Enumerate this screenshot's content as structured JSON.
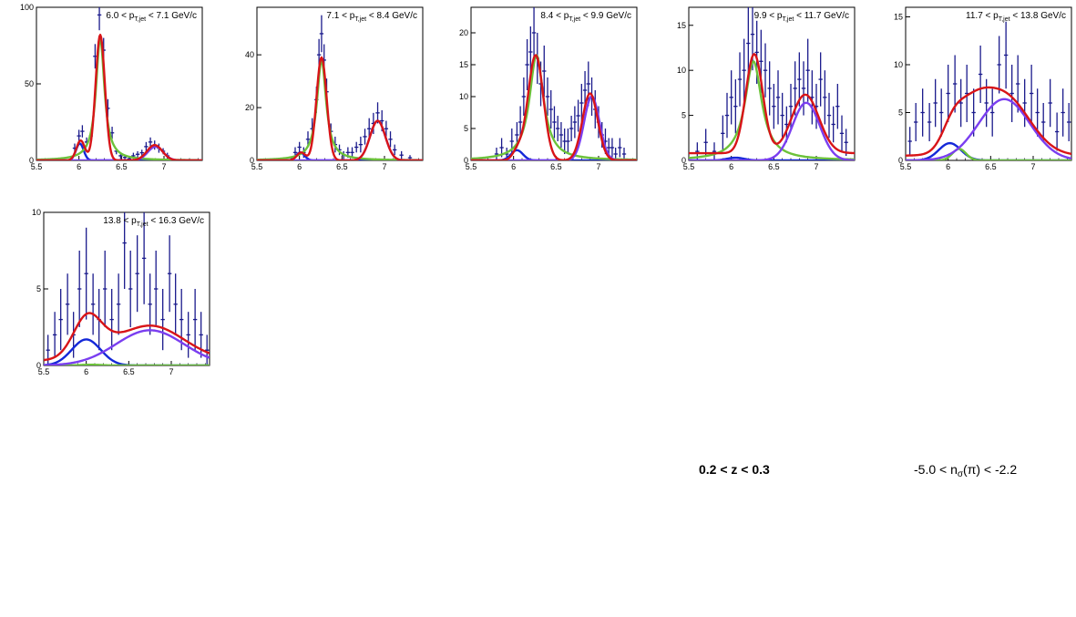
{
  "colors": {
    "data_points": "#1a1a8c",
    "total_fit": "#d81418",
    "kaon_fit": "#1428d8",
    "pion_fit": "#7a3ef0",
    "proton_fit": "#6cc23a"
  },
  "footer": {
    "z_range": "0.2 < z < 0.3",
    "nsigma_prefix": "-5.0 < n",
    "nsigma_sub": "σ",
    "nsigma_suffix": "(π) < -2.2"
  },
  "chart_data": [
    {
      "type": "scatter",
      "title_prefix": "6.0 < p",
      "title_sub": "T,jet",
      "title_suffix": " < 7.1 GeV/c",
      "xlim": [
        5.5,
        7.45
      ],
      "ylim": [
        0,
        100
      ],
      "x_ticks": [
        "5.5",
        "6",
        "6.5",
        "7"
      ],
      "y_ticks": [
        "0",
        "50",
        "100"
      ],
      "points": {
        "x": [
          5.95,
          6.0,
          6.04,
          6.09,
          6.14,
          6.19,
          6.24,
          6.29,
          6.34,
          6.39,
          6.44,
          6.49,
          6.54,
          6.59,
          6.64,
          6.69,
          6.74,
          6.79,
          6.84,
          6.89,
          6.94,
          6.99,
          7.04
        ],
        "y": [
          8,
          16,
          19,
          12,
          16,
          68,
          95,
          72,
          34,
          18,
          6,
          3,
          2,
          1,
          3,
          4,
          5,
          9,
          12,
          10,
          8,
          6,
          3
        ],
        "err": [
          3,
          4,
          4,
          3,
          4,
          8,
          10,
          8,
          6,
          4,
          2,
          2,
          1.5,
          1,
          2,
          2,
          2,
          3,
          3,
          3,
          3,
          2,
          2
        ]
      },
      "curves": [
        {
          "component": "total",
          "type": "multi",
          "peaks": [
            [
              6.02,
              13,
              0.05
            ],
            [
              6.25,
              82,
              0.055
            ],
            [
              6.89,
              10,
              0.09
            ]
          ]
        },
        {
          "component": "kaon",
          "type": "gauss",
          "mean": 6.01,
          "sigma": 0.045,
          "amp": 11
        },
        {
          "component": "proton",
          "type": "lorentz",
          "mean": 6.25,
          "gamma": 0.06,
          "amp": 80
        },
        {
          "component": "pion",
          "type": "gauss",
          "mean": 6.9,
          "sigma": 0.09,
          "amp": 9
        }
      ]
    },
    {
      "type": "scatter",
      "title_prefix": "7.1 < p",
      "title_sub": "T,jet",
      "title_suffix": " < 8.4 GeV/c",
      "xlim": [
        5.5,
        7.45
      ],
      "ylim": [
        0,
        58
      ],
      "x_ticks": [
        "5.5",
        "6",
        "6.5",
        "7"
      ],
      "y_ticks": [
        "0",
        "20",
        "40"
      ],
      "points": {
        "x": [
          5.95,
          6.0,
          6.05,
          6.1,
          6.15,
          6.2,
          6.23,
          6.26,
          6.29,
          6.32,
          6.37,
          6.42,
          6.47,
          6.52,
          6.57,
          6.62,
          6.67,
          6.72,
          6.77,
          6.82,
          6.87,
          6.92,
          6.97,
          7.02,
          7.07,
          7.12,
          7.2,
          7.3
        ],
        "y": [
          3,
          5,
          3,
          8,
          12,
          23,
          40,
          48,
          38,
          26,
          11,
          6,
          4,
          2,
          3,
          3,
          5,
          6,
          9,
          12,
          14,
          18,
          15,
          12,
          8,
          4,
          2,
          1
        ],
        "err": [
          2,
          2,
          2,
          3,
          4,
          5,
          6,
          7,
          6,
          5,
          3,
          3,
          2,
          1.5,
          2,
          2,
          2,
          3,
          3,
          4,
          4,
          4,
          4,
          3,
          3,
          2,
          1.5,
          1
        ]
      },
      "curves": [
        {
          "component": "total",
          "type": "multi",
          "peaks": [
            [
              6.02,
              3,
              0.05
            ],
            [
              6.26,
              39,
              0.06
            ],
            [
              6.92,
              15,
              0.09
            ]
          ]
        },
        {
          "component": "kaon",
          "type": "gauss",
          "mean": 6.01,
          "sigma": 0.05,
          "amp": 3
        },
        {
          "component": "proton",
          "type": "lorentz",
          "mean": 6.26,
          "gamma": 0.065,
          "amp": 38
        },
        {
          "component": "pion",
          "type": "gauss",
          "mean": 6.92,
          "sigma": 0.09,
          "amp": 15
        }
      ]
    },
    {
      "type": "scatter",
      "title_prefix": "8.4 < p",
      "title_sub": "T,jet",
      "title_suffix": " < 9.9 GeV/c",
      "xlim": [
        5.5,
        7.45
      ],
      "ylim": [
        0,
        24
      ],
      "x_ticks": [
        "5.5",
        "6",
        "6.5",
        "7"
      ],
      "y_ticks": [
        "0",
        "5",
        "10",
        "15",
        "20"
      ],
      "points": {
        "x": [
          5.8,
          5.86,
          5.92,
          5.98,
          6.04,
          6.08,
          6.12,
          6.16,
          6.2,
          6.24,
          6.28,
          6.32,
          6.36,
          6.4,
          6.44,
          6.48,
          6.52,
          6.56,
          6.6,
          6.64,
          6.68,
          6.72,
          6.76,
          6.8,
          6.84,
          6.88,
          6.92,
          6.96,
          7.0,
          7.04,
          7.08,
          7.12,
          7.16,
          7.2,
          7.25,
          7.3
        ],
        "y": [
          1,
          2,
          1,
          3,
          4,
          6,
          10,
          15,
          17,
          20,
          16,
          12,
          14,
          10,
          8,
          6,
          5,
          4,
          3,
          3,
          5,
          6,
          7,
          9,
          11,
          12,
          10,
          8,
          6,
          4,
          3,
          2,
          2,
          1,
          2,
          1
        ],
        "err": [
          1,
          1.5,
          1,
          2,
          2,
          2.5,
          3,
          4,
          4,
          4.5,
          4,
          3.5,
          4,
          3,
          3,
          2.5,
          2,
          2,
          2,
          2,
          2,
          2.5,
          2.5,
          3,
          3,
          3.5,
          3,
          3,
          2.5,
          2,
          2,
          1.5,
          1.5,
          1,
          1.5,
          1
        ]
      },
      "curves": [
        {
          "component": "total",
          "type": "multi",
          "peaks": [
            [
              6.05,
              1.5,
              0.06
            ],
            [
              6.26,
              16.5,
              0.09
            ],
            [
              6.9,
              10.5,
              0.09
            ]
          ]
        },
        {
          "component": "kaon",
          "type": "gauss",
          "mean": 6.04,
          "sigma": 0.07,
          "amp": 1.6
        },
        {
          "component": "proton",
          "type": "lorentz",
          "mean": 6.27,
          "gamma": 0.1,
          "amp": 16.5
        },
        {
          "component": "pion",
          "type": "gauss",
          "mean": 6.92,
          "sigma": 0.09,
          "amp": 10
        }
      ]
    },
    {
      "type": "scatter",
      "title_prefix": "9.9 < p",
      "title_sub": "T,jet",
      "title_suffix": " < 11.7 GeV/c",
      "xlim": [
        5.5,
        7.45
      ],
      "ylim": [
        0,
        17
      ],
      "x_ticks": [
        "5.5",
        "6",
        "6.5",
        "7"
      ],
      "y_ticks": [
        "0",
        "5",
        "10",
        "15"
      ],
      "points": {
        "x": [
          5.6,
          5.7,
          5.8,
          5.9,
          5.95,
          6.0,
          6.05,
          6.1,
          6.15,
          6.2,
          6.25,
          6.3,
          6.35,
          6.4,
          6.45,
          6.5,
          6.55,
          6.6,
          6.65,
          6.7,
          6.75,
          6.8,
          6.85,
          6.9,
          6.95,
          7.0,
          7.05,
          7.1,
          7.15,
          7.2,
          7.25,
          7.3,
          7.35
        ],
        "y": [
          1,
          2,
          1,
          3,
          5,
          7,
          6,
          9,
          10,
          13,
          14,
          12,
          11,
          10,
          8,
          6,
          7,
          5,
          4,
          6,
          8,
          9,
          8,
          10,
          7,
          6,
          9,
          7,
          5,
          4,
          6,
          3,
          2
        ],
        "err": [
          1,
          1.5,
          1,
          2,
          2.5,
          3,
          3,
          3,
          3.5,
          4,
          4,
          3.5,
          3.5,
          3,
          3,
          2.5,
          3,
          2.5,
          2,
          2.5,
          3,
          3,
          3,
          3.5,
          3,
          2.5,
          3,
          3,
          2.5,
          2,
          2.5,
          2,
          1.5
        ]
      },
      "curves": [
        {
          "component": "total",
          "type": "multi",
          "base": 0.8,
          "peaks": [
            [
              6.27,
              11,
              0.1
            ],
            [
              6.87,
              6.5,
              0.16
            ]
          ]
        },
        {
          "component": "kaon",
          "type": "gauss",
          "mean": 6.05,
          "sigma": 0.1,
          "amp": 0.3
        },
        {
          "component": "proton",
          "type": "lorentz",
          "mean": 6.26,
          "gamma": 0.12,
          "amp": 11
        },
        {
          "component": "pion",
          "type": "gauss",
          "mean": 6.88,
          "sigma": 0.16,
          "amp": 6.4
        }
      ]
    },
    {
      "type": "scatter",
      "title_prefix": "11.7 < p",
      "title_sub": "T,jet",
      "title_suffix": " < 13.8 GeV/c",
      "xlim": [
        5.5,
        7.45
      ],
      "ylim": [
        0,
        16
      ],
      "x_ticks": [
        "5.5",
        "6",
        "6.5",
        "7"
      ],
      "y_ticks": [
        "0",
        "5",
        "10",
        "15"
      ],
      "points": {
        "x": [
          5.55,
          5.62,
          5.7,
          5.78,
          5.85,
          5.92,
          6.0,
          6.08,
          6.15,
          6.22,
          6.3,
          6.38,
          6.45,
          6.52,
          6.6,
          6.68,
          6.75,
          6.82,
          6.9,
          6.98,
          7.05,
          7.12,
          7.2,
          7.28,
          7.35,
          7.42
        ],
        "y": [
          2,
          4,
          5,
          4,
          6,
          5,
          7,
          8,
          6,
          7,
          5,
          9,
          6,
          5,
          10,
          11,
          7,
          8,
          6,
          7,
          5,
          4,
          6,
          3,
          5,
          4
        ],
        "err": [
          1.5,
          2,
          2.5,
          2,
          2.5,
          2.5,
          3,
          3,
          2.5,
          3,
          2.5,
          3,
          2.5,
          2.5,
          3,
          3.5,
          3,
          3,
          2.5,
          3,
          2.5,
          2,
          2.5,
          2,
          2.5,
          2
        ]
      },
      "curves": [
        {
          "component": "total",
          "type": "multi",
          "base": 0.5,
          "peaks": [
            [
              6.05,
              1.8,
              0.12
            ],
            [
              6.25,
              3.4,
              0.2
            ],
            [
              6.65,
              6.3,
              0.3
            ]
          ]
        },
        {
          "component": "kaon",
          "type": "gauss",
          "mean": 6.02,
          "sigma": 0.13,
          "amp": 1.8
        },
        {
          "component": "proton",
          "type": "gauss",
          "mean": 6.13,
          "sigma": 0.08,
          "amp": 1.2
        },
        {
          "component": "pion",
          "type": "gauss",
          "mean": 6.66,
          "sigma": 0.3,
          "amp": 6.4
        }
      ]
    },
    {
      "type": "scatter",
      "title_prefix": "13.8 < p",
      "title_sub": "T,jet",
      "title_suffix": " < 16.3 GeV/c",
      "xlim": [
        5.5,
        7.45
      ],
      "ylim": [
        0,
        10
      ],
      "x_ticks": [
        "5.5",
        "6",
        "6.5",
        "7"
      ],
      "y_ticks": [
        "0",
        "5",
        "10"
      ],
      "points": {
        "x": [
          5.55,
          5.63,
          5.7,
          5.78,
          5.85,
          5.92,
          6.0,
          6.08,
          6.15,
          6.22,
          6.3,
          6.38,
          6.45,
          6.52,
          6.6,
          6.68,
          6.75,
          6.82,
          6.9,
          6.98,
          7.05,
          7.12,
          7.2,
          7.28,
          7.35,
          7.42
        ],
        "y": [
          1,
          2,
          3,
          4,
          2,
          5,
          6,
          4,
          3,
          5,
          3,
          4,
          8,
          5,
          6,
          7,
          4,
          5,
          3,
          6,
          4,
          3,
          2,
          3,
          2,
          1
        ],
        "err": [
          1,
          1.5,
          2,
          2,
          1.5,
          2.5,
          3,
          2,
          2,
          2.5,
          2,
          2,
          3,
          2.5,
          2.5,
          3,
          2,
          2.5,
          2,
          2.5,
          2,
          2,
          1.5,
          2,
          1.5,
          1
        ]
      },
      "curves": [
        {
          "component": "total",
          "type": "multi",
          "base": 0.3,
          "peaks": [
            [
              6.0,
              1.5,
              0.15
            ],
            [
              6.05,
              1.2,
              0.2
            ],
            [
              6.75,
              2.3,
              0.4
            ]
          ]
        },
        {
          "component": "kaon",
          "type": "gauss",
          "mean": 6.0,
          "sigma": 0.17,
          "amp": 1.7
        },
        {
          "component": "proton",
          "type": "gauss",
          "mean": 6.05,
          "sigma": 0.12,
          "amp": 0.05
        },
        {
          "component": "pion",
          "type": "gauss",
          "mean": 6.75,
          "sigma": 0.4,
          "amp": 2.3
        }
      ]
    }
  ]
}
